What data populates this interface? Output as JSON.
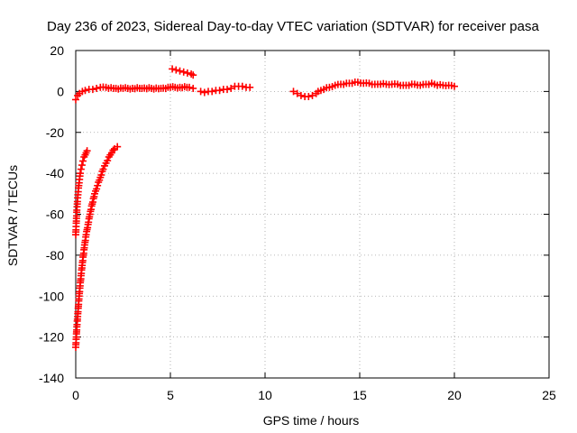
{
  "chart_data": {
    "type": "scatter",
    "title": "Day 236 of 2023, Sidereal Day-to-day VTEC variation (SDTVAR) for receiver pasa",
    "xlabel": "GPS time / hours",
    "ylabel": "SDTVAR / TECUs",
    "xlim": [
      0,
      25
    ],
    "ylim": [
      -140,
      20
    ],
    "x_ticks": [
      0,
      5,
      10,
      15,
      20,
      25
    ],
    "y_ticks": [
      -140,
      -120,
      -100,
      -80,
      -60,
      -40,
      -20,
      0,
      20
    ],
    "x_tick_labels": [
      "0",
      "5",
      "10",
      "15",
      "20",
      "25"
    ],
    "y_tick_labels": [
      "-140",
      "-120",
      "-100",
      "-80",
      "-60",
      "-40",
      "-20",
      "0",
      "20"
    ],
    "grid": true,
    "legend": "none",
    "marker": "plus",
    "color": "#ff0000",
    "series": [
      {
        "x": [
          0.0,
          0.02,
          0.04,
          0.06,
          0.08,
          0.1,
          0.13,
          0.16,
          0.2,
          0.24,
          0.28,
          0.33,
          0.38,
          0.44,
          0.5,
          0.55,
          0.6
        ],
        "y": [
          -70,
          -66,
          -62,
          -58,
          -55,
          -52,
          -49,
          -46,
          -43,
          -40,
          -38,
          -36,
          -34,
          -32,
          -31,
          -30,
          -29
        ]
      },
      {
        "x": [
          0.0,
          0.03,
          0.06,
          0.1,
          0.14,
          0.18,
          0.23,
          0.28,
          0.34,
          0.4,
          0.47,
          0.55,
          0.65,
          0.75,
          0.87,
          1.0,
          1.15,
          1.3,
          1.45,
          1.6,
          1.75,
          1.9,
          2.05,
          2.2
        ],
        "y": [
          -125,
          -120,
          -115,
          -110,
          -105,
          -100,
          -95,
          -90,
          -85,
          -80,
          -75,
          -70,
          -65,
          -60,
          -55,
          -50,
          -46,
          -42,
          -38,
          -35,
          -32,
          -30,
          -28,
          -27
        ]
      },
      {
        "x": [
          0.0,
          0.1,
          0.2,
          0.35,
          0.5,
          0.7,
          0.9,
          1.1,
          1.3,
          1.6,
          2.0,
          2.5,
          3.0,
          3.5,
          4.0,
          4.5,
          5.0,
          5.5,
          6.0,
          6.2
        ],
        "y": [
          -4,
          -2,
          -1,
          0,
          0.5,
          1,
          1,
          1.5,
          2,
          2,
          1.5,
          1.5,
          1.5,
          1.5,
          1.5,
          1.5,
          2,
          2,
          2,
          1.5
        ]
      },
      {
        "x": [
          5.1,
          5.3,
          5.5,
          5.7,
          5.9,
          6.1,
          6.2
        ],
        "y": [
          11,
          10.5,
          10,
          9.5,
          9,
          8.5,
          8
        ]
      },
      {
        "x": [
          6.6,
          6.8,
          7.0,
          7.2,
          7.4,
          7.6,
          7.8,
          8.0,
          8.2,
          8.4,
          8.6,
          8.8,
          9.0,
          9.2
        ],
        "y": [
          0,
          -0.5,
          0,
          0,
          0.5,
          0.5,
          1,
          1,
          1.5,
          2.5,
          2.5,
          2.5,
          2,
          2
        ]
      },
      {
        "x": [
          11.5,
          11.7,
          11.9,
          12.1,
          12.3,
          12.5,
          12.7
        ],
        "y": [
          0,
          -1,
          -2,
          -2.5,
          -2.5,
          -2,
          -1
        ]
      },
      {
        "x": [
          12.8,
          13.1,
          13.4,
          13.7,
          14.0,
          14.3,
          14.6,
          14.9,
          15.2,
          15.5,
          15.8,
          16.1,
          16.4,
          16.7,
          17.0,
          17.3,
          17.6,
          17.9,
          18.2,
          18.5,
          18.8,
          19.1,
          19.4,
          19.7,
          20.0
        ],
        "y": [
          0,
          1,
          2,
          3,
          3.5,
          4,
          4,
          4.5,
          4,
          4,
          3.5,
          3.5,
          3.5,
          3.5,
          3.5,
          3,
          3,
          3.5,
          3,
          3.5,
          4,
          3,
          3,
          3,
          2.5
        ]
      }
    ]
  }
}
